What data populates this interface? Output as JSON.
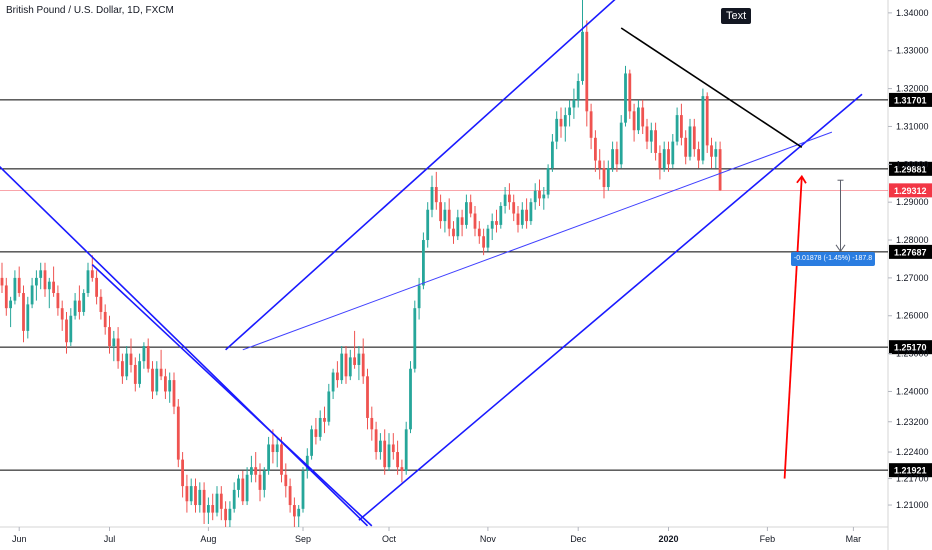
{
  "header": {
    "title": "British Pound / U.S. Dollar, 1D, FXCM"
  },
  "annotation": {
    "text": "Text"
  },
  "measure": {
    "label": "-0.01878 (-1.45%) -187.8"
  },
  "chart_data": {
    "type": "candlestick",
    "symbol": "British Pound / U.S. Dollar",
    "timeframe": "1D",
    "source": "FXCM",
    "ylim": [
      1.2042,
      1.3434
    ],
    "y_ticks": [
      1.21,
      1.217,
      1.224,
      1.232,
      1.24,
      1.25,
      1.26,
      1.27,
      1.28,
      1.29,
      1.3,
      1.31,
      1.32,
      1.33,
      1.34
    ],
    "y_tick_labels": [
      "1.21000",
      "1.21700",
      "1.22400",
      "1.23200",
      "1.24000",
      "1.25000",
      "1.26000",
      "1.27000",
      "1.28000",
      "1.29000",
      "1.30000",
      "1.31000",
      "1.32000",
      "1.33000",
      "1.34000"
    ],
    "x_ticks": [
      {
        "label": "Jun",
        "bar": 4
      },
      {
        "label": "Jul",
        "bar": 25
      },
      {
        "label": "Aug",
        "bar": 48
      },
      {
        "label": "Sep",
        "bar": 70
      },
      {
        "label": "Oct",
        "bar": 90
      },
      {
        "label": "Nov",
        "bar": 113
      },
      {
        "label": "Dec",
        "bar": 134
      },
      {
        "label": "2020",
        "bar": 155
      },
      {
        "label": "Feb",
        "bar": 178
      },
      {
        "label": "Mar",
        "bar": 198
      }
    ],
    "last_price": {
      "value": 1.29312,
      "label": "1.29312",
      "color": "#f23645"
    },
    "levels": [
      {
        "value": 1.31701,
        "label": "1.31701"
      },
      {
        "value": 1.29881,
        "label": "1.29881"
      },
      {
        "value": 1.27687,
        "label": "1.27687"
      },
      {
        "value": 1.2517,
        "label": "1.25170"
      },
      {
        "value": 1.21921,
        "label": "1.21921"
      }
    ],
    "trendlines": [
      {
        "from": [
          -2,
          1.301
        ],
        "to": [
          85,
          1.2045
        ],
        "color": "#1a1aff"
      },
      {
        "from": [
          21,
          1.2735
        ],
        "to": [
          86,
          1.2045
        ],
        "color": "#1a1aff"
      },
      {
        "from": [
          52,
          1.251
        ],
        "to": [
          143,
          1.344
        ],
        "color": "#1a1aff"
      },
      {
        "from": [
          83,
          1.206
        ],
        "to": [
          200,
          1.3185
        ],
        "color": "#1a1aff"
      },
      {
        "from": [
          56,
          1.251
        ],
        "to": [
          193,
          1.3085
        ],
        "color": "#4040ff"
      },
      {
        "from": [
          144,
          1.336
        ],
        "to": [
          186,
          1.3045
        ],
        "color": "#000000"
      }
    ],
    "arrow_up": {
      "from": [
        182,
        1.217
      ],
      "to": [
        186,
        1.2968
      ],
      "color": "#ff0000"
    },
    "arrow_down": {
      "from": [
        195,
        1.2958
      ],
      "to": [
        195,
        1.277
      ],
      "color": "#5d606b"
    },
    "colors": {
      "up": "#26a69a",
      "down": "#ef5350"
    },
    "candles": [
      [
        1.27,
        1.274,
        1.266,
        1.268
      ],
      [
        1.268,
        1.27,
        1.26,
        1.262
      ],
      [
        1.262,
        1.265,
        1.257,
        1.264
      ],
      [
        1.264,
        1.272,
        1.263,
        1.27
      ],
      [
        1.27,
        1.273,
        1.265,
        1.266
      ],
      [
        1.266,
        1.268,
        1.253,
        1.256
      ],
      [
        1.256,
        1.265,
        1.254,
        1.263
      ],
      [
        1.263,
        1.27,
        1.262,
        1.268
      ],
      [
        1.268,
        1.272,
        1.264,
        1.27
      ],
      [
        1.27,
        1.274,
        1.267,
        1.272
      ],
      [
        1.272,
        1.274,
        1.265,
        1.267
      ],
      [
        1.267,
        1.27,
        1.262,
        1.269
      ],
      [
        1.269,
        1.273,
        1.265,
        1.266
      ],
      [
        1.266,
        1.268,
        1.26,
        1.262
      ],
      [
        1.262,
        1.264,
        1.256,
        1.259
      ],
      [
        1.259,
        1.261,
        1.25,
        1.253
      ],
      [
        1.253,
        1.262,
        1.252,
        1.26
      ],
      [
        1.26,
        1.266,
        1.259,
        1.264
      ],
      [
        1.264,
        1.268,
        1.259,
        1.261
      ],
      [
        1.261,
        1.267,
        1.26,
        1.266
      ],
      [
        1.266,
        1.274,
        1.265,
        1.272
      ],
      [
        1.272,
        1.276,
        1.269,
        1.27
      ],
      [
        1.27,
        1.272,
        1.263,
        1.265
      ],
      [
        1.265,
        1.267,
        1.259,
        1.261
      ],
      [
        1.261,
        1.263,
        1.255,
        1.257
      ],
      [
        1.257,
        1.26,
        1.25,
        1.252
      ],
      [
        1.252,
        1.256,
        1.248,
        1.254
      ],
      [
        1.254,
        1.257,
        1.246,
        1.248
      ],
      [
        1.248,
        1.25,
        1.242,
        1.244
      ],
      [
        1.244,
        1.252,
        1.243,
        1.25
      ],
      [
        1.25,
        1.254,
        1.245,
        1.247
      ],
      [
        1.247,
        1.249,
        1.24,
        1.242
      ],
      [
        1.242,
        1.25,
        1.241,
        1.248
      ],
      [
        1.248,
        1.253,
        1.246,
        1.252
      ],
      [
        1.252,
        1.254,
        1.245,
        1.246
      ],
      [
        1.246,
        1.248,
        1.238,
        1.24
      ],
      [
        1.24,
        1.248,
        1.239,
        1.246
      ],
      [
        1.246,
        1.251,
        1.243,
        1.244
      ],
      [
        1.244,
        1.246,
        1.238,
        1.24
      ],
      [
        1.24,
        1.245,
        1.237,
        1.243
      ],
      [
        1.243,
        1.245,
        1.234,
        1.236
      ],
      [
        1.236,
        1.238,
        1.22,
        1.222
      ],
      [
        1.222,
        1.224,
        1.212,
        1.215
      ],
      [
        1.215,
        1.218,
        1.208,
        1.211
      ],
      [
        1.211,
        1.217,
        1.21,
        1.215
      ],
      [
        1.215,
        1.217,
        1.208,
        1.21
      ],
      [
        1.21,
        1.216,
        1.208,
        1.214
      ],
      [
        1.214,
        1.216,
        1.205,
        1.208
      ],
      [
        1.208,
        1.212,
        1.205,
        1.21
      ],
      [
        1.21,
        1.213,
        1.206,
        1.208
      ],
      [
        1.208,
        1.215,
        1.207,
        1.213
      ],
      [
        1.213,
        1.215,
        1.206,
        1.209
      ],
      [
        1.209,
        1.211,
        1.203,
        1.206
      ],
      [
        1.206,
        1.211,
        1.204,
        1.209
      ],
      [
        1.209,
        1.216,
        1.208,
        1.214
      ],
      [
        1.214,
        1.218,
        1.212,
        1.217
      ],
      [
        1.217,
        1.219,
        1.21,
        1.211
      ],
      [
        1.211,
        1.22,
        1.21,
        1.218
      ],
      [
        1.218,
        1.223,
        1.216,
        1.22
      ],
      [
        1.22,
        1.224,
        1.216,
        1.218
      ],
      [
        1.218,
        1.221,
        1.211,
        1.214
      ],
      [
        1.214,
        1.22,
        1.212,
        1.219
      ],
      [
        1.219,
        1.228,
        1.218,
        1.226
      ],
      [
        1.226,
        1.23,
        1.221,
        1.224
      ],
      [
        1.224,
        1.228,
        1.22,
        1.226
      ],
      [
        1.226,
        1.228,
        1.216,
        1.218
      ],
      [
        1.218,
        1.221,
        1.212,
        1.215
      ],
      [
        1.215,
        1.217,
        1.208,
        1.21
      ],
      [
        1.21,
        1.212,
        1.204,
        1.207
      ],
      [
        1.207,
        1.21,
        1.203,
        1.209
      ],
      [
        1.209,
        1.22,
        1.208,
        1.219
      ],
      [
        1.219,
        1.225,
        1.217,
        1.223
      ],
      [
        1.223,
        1.231,
        1.222,
        1.23
      ],
      [
        1.23,
        1.233,
        1.226,
        1.228
      ],
      [
        1.228,
        1.235,
        1.227,
        1.233
      ],
      [
        1.233,
        1.236,
        1.229,
        1.232
      ],
      [
        1.232,
        1.242,
        1.231,
        1.24
      ],
      [
        1.24,
        1.246,
        1.238,
        1.245
      ],
      [
        1.245,
        1.248,
        1.241,
        1.243
      ],
      [
        1.243,
        1.252,
        1.242,
        1.25
      ],
      [
        1.25,
        1.252,
        1.242,
        1.244
      ],
      [
        1.244,
        1.251,
        1.243,
        1.249
      ],
      [
        1.249,
        1.256,
        1.246,
        1.247
      ],
      [
        1.247,
        1.252,
        1.243,
        1.25
      ],
      [
        1.25,
        1.254,
        1.242,
        1.244
      ],
      [
        1.244,
        1.246,
        1.23,
        1.233
      ],
      [
        1.233,
        1.236,
        1.227,
        1.23
      ],
      [
        1.23,
        1.232,
        1.222,
        1.224
      ],
      [
        1.224,
        1.229,
        1.222,
        1.227
      ],
      [
        1.227,
        1.23,
        1.218,
        1.22
      ],
      [
        1.22,
        1.229,
        1.219,
        1.226
      ],
      [
        1.226,
        1.229,
        1.222,
        1.224
      ],
      [
        1.224,
        1.227,
        1.218,
        1.22
      ],
      [
        1.22,
        1.222,
        1.216,
        1.219
      ],
      [
        1.219,
        1.232,
        1.218,
        1.23
      ],
      [
        1.23,
        1.248,
        1.229,
        1.246
      ],
      [
        1.246,
        1.264,
        1.245,
        1.262
      ],
      [
        1.262,
        1.27,
        1.259,
        1.268
      ],
      [
        1.268,
        1.282,
        1.267,
        1.28
      ],
      [
        1.28,
        1.29,
        1.278,
        1.288
      ],
      [
        1.288,
        1.297,
        1.286,
        1.294
      ],
      [
        1.294,
        1.298,
        1.288,
        1.29
      ],
      [
        1.29,
        1.292,
        1.283,
        1.285
      ],
      [
        1.285,
        1.29,
        1.282,
        1.288
      ],
      [
        1.288,
        1.291,
        1.281,
        1.283
      ],
      [
        1.283,
        1.285,
        1.279,
        1.281
      ],
      [
        1.281,
        1.288,
        1.28,
        1.286
      ],
      [
        1.286,
        1.288,
        1.281,
        1.284
      ],
      [
        1.284,
        1.292,
        1.283,
        1.29
      ],
      [
        1.29,
        1.292,
        1.286,
        1.287
      ],
      [
        1.287,
        1.289,
        1.281,
        1.283
      ],
      [
        1.283,
        1.285,
        1.279,
        1.281
      ],
      [
        1.281,
        1.283,
        1.276,
        1.278
      ],
      [
        1.278,
        1.284,
        1.277,
        1.283
      ],
      [
        1.283,
        1.287,
        1.28,
        1.285
      ],
      [
        1.285,
        1.288,
        1.282,
        1.284
      ],
      [
        1.284,
        1.29,
        1.283,
        1.289
      ],
      [
        1.289,
        1.294,
        1.287,
        1.292
      ],
      [
        1.292,
        1.295,
        1.288,
        1.29
      ],
      [
        1.29,
        1.292,
        1.285,
        1.287
      ],
      [
        1.287,
        1.289,
        1.282,
        1.284
      ],
      [
        1.284,
        1.29,
        1.283,
        1.288
      ],
      [
        1.288,
        1.291,
        1.283,
        1.285
      ],
      [
        1.285,
        1.291,
        1.284,
        1.29
      ],
      [
        1.29,
        1.295,
        1.288,
        1.293
      ],
      [
        1.293,
        1.296,
        1.289,
        1.291
      ],
      [
        1.291,
        1.294,
        1.288,
        1.292
      ],
      [
        1.292,
        1.3,
        1.291,
        1.299
      ],
      [
        1.299,
        1.308,
        1.298,
        1.306
      ],
      [
        1.306,
        1.314,
        1.304,
        1.312
      ],
      [
        1.312,
        1.315,
        1.307,
        1.31
      ],
      [
        1.31,
        1.315,
        1.306,
        1.313
      ],
      [
        1.313,
        1.317,
        1.31,
        1.315
      ],
      [
        1.315,
        1.32,
        1.312,
        1.317
      ],
      [
        1.317,
        1.324,
        1.315,
        1.322
      ],
      [
        1.322,
        1.344,
        1.321,
        1.335
      ],
      [
        1.335,
        1.338,
        1.31,
        1.314
      ],
      [
        1.314,
        1.316,
        1.304,
        1.307
      ],
      [
        1.307,
        1.309,
        1.298,
        1.301
      ],
      [
        1.301,
        1.304,
        1.296,
        1.299
      ],
      [
        1.299,
        1.301,
        1.291,
        1.294
      ],
      [
        1.294,
        1.301,
        1.293,
        1.299
      ],
      [
        1.299,
        1.306,
        1.298,
        1.304
      ],
      [
        1.304,
        1.306,
        1.298,
        1.3
      ],
      [
        1.3,
        1.313,
        1.299,
        1.311
      ],
      [
        1.311,
        1.326,
        1.31,
        1.324
      ],
      [
        1.324,
        1.325,
        1.312,
        1.314
      ],
      [
        1.314,
        1.316,
        1.306,
        1.309
      ],
      [
        1.309,
        1.317,
        1.308,
        1.315
      ],
      [
        1.315,
        1.317,
        1.308,
        1.31
      ],
      [
        1.31,
        1.312,
        1.304,
        1.306
      ],
      [
        1.306,
        1.311,
        1.303,
        1.309
      ],
      [
        1.309,
        1.311,
        1.301,
        1.303
      ],
      [
        1.303,
        1.305,
        1.296,
        1.299
      ],
      [
        1.299,
        1.306,
        1.298,
        1.304
      ],
      [
        1.304,
        1.306,
        1.298,
        1.3
      ],
      [
        1.3,
        1.308,
        1.299,
        1.306
      ],
      [
        1.306,
        1.315,
        1.305,
        1.313
      ],
      [
        1.313,
        1.316,
        1.305,
        1.307
      ],
      [
        1.307,
        1.309,
        1.3,
        1.302
      ],
      [
        1.302,
        1.312,
        1.301,
        1.31
      ],
      [
        1.31,
        1.312,
        1.302,
        1.304
      ],
      [
        1.304,
        1.306,
        1.299,
        1.301
      ],
      [
        1.301,
        1.32,
        1.3,
        1.318
      ],
      [
        1.318,
        1.319,
        1.303,
        1.305
      ],
      [
        1.305,
        1.307,
        1.299,
        1.302
      ],
      [
        1.302,
        1.306,
        1.299,
        1.304
      ],
      [
        1.304,
        1.306,
        1.293,
        1.2931
      ]
    ]
  }
}
